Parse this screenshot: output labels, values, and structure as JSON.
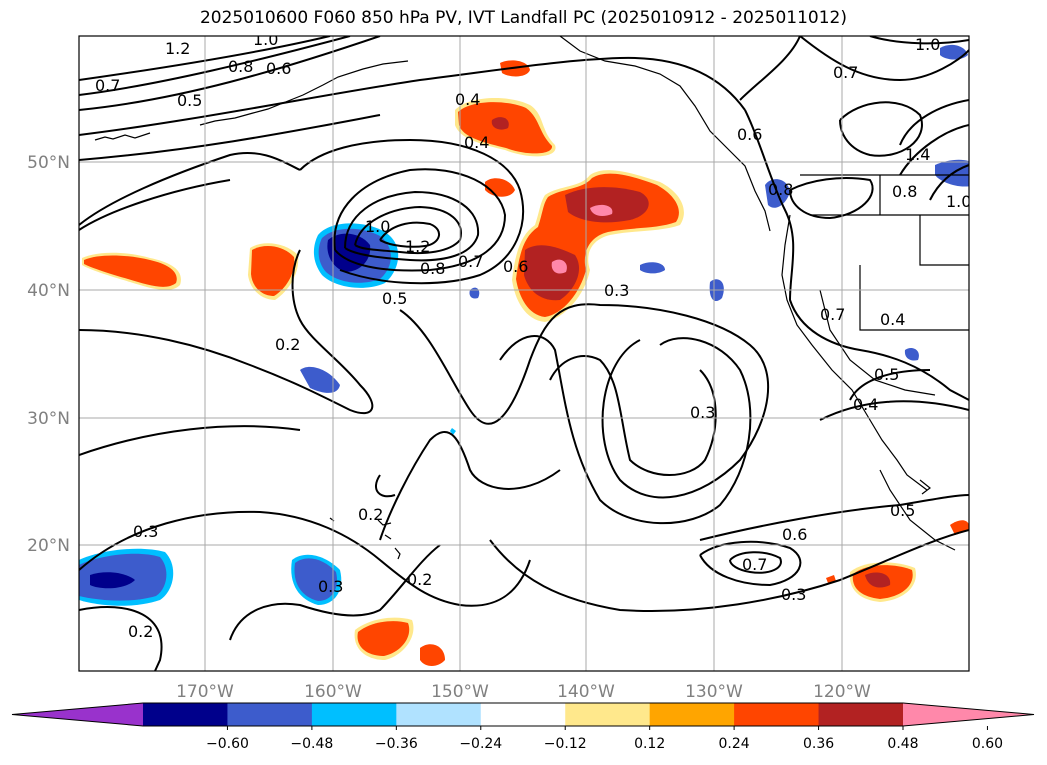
{
  "title": "2025010600 F060 850 hPa PV, IVT Landfall PC (2025010912 - 2025011012)",
  "lon_ticks": [
    "170°W",
    "160°W",
    "150°W",
    "140°W",
    "130°W",
    "120°W"
  ],
  "lat_ticks": [
    "50°N",
    "40°N",
    "30°N",
    "20°N"
  ],
  "contour_labels": [
    "1.2",
    "1.0",
    "0.8",
    "0.6",
    "0.7",
    "0.5",
    "0.4",
    "0.4",
    "1.0",
    "1.2",
    "0.8",
    "0.7",
    "0.6",
    "0.5",
    "0.3",
    "0.2",
    "0.3",
    "0.3",
    "0.2",
    "0.2",
    "0.3",
    "0.2",
    "0.7",
    "0.3",
    "0.6",
    "0.5",
    "0.4",
    "0.5",
    "0.4",
    "0.7",
    "0.8",
    "1.0",
    "1.4",
    "0.8",
    "1.0",
    "0.7",
    "0.6"
  ],
  "colorbar": {
    "ticks": [
      "−0.60",
      "−0.48",
      "−0.36",
      "−0.24",
      "−0.12",
      "0.12",
      "0.24",
      "0.36",
      "0.48",
      "0.60"
    ],
    "colors": [
      "#9932cc",
      "#00008b",
      "#3d5ccc",
      "#00bfff",
      "#b0e2ff",
      "#ffffff",
      "#ffe88c",
      "#ffa500",
      "#ff4500",
      "#b22222",
      "#ff88aa"
    ]
  }
}
